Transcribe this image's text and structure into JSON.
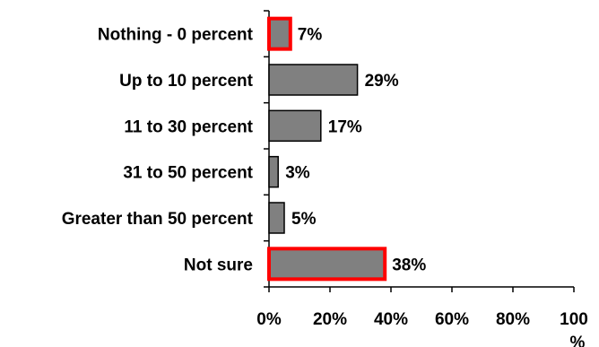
{
  "chart_data": {
    "type": "bar",
    "orientation": "horizontal",
    "categories": [
      "Nothing - 0 percent",
      "Up to 10 percent",
      "11 to 30 percent",
      "31 to 50 percent",
      "Greater than 50 percent",
      "Not sure"
    ],
    "values": [
      7,
      29,
      17,
      3,
      5,
      38
    ],
    "value_labels": [
      "7%",
      "29%",
      "17%",
      "3%",
      "5%",
      "38%"
    ],
    "highlighted": [
      true,
      false,
      false,
      false,
      false,
      true
    ],
    "xlim": [
      0,
      100
    ],
    "x_ticks": [
      0,
      20,
      40,
      60,
      80,
      100
    ],
    "x_tick_labels": [
      "0%",
      "20%",
      "40%",
      "60%",
      "80%",
      "100%"
    ],
    "grid": false,
    "bar_color": "#808080",
    "bar_edge_color": "#000000",
    "highlight_edge_color": "#ff0000"
  }
}
